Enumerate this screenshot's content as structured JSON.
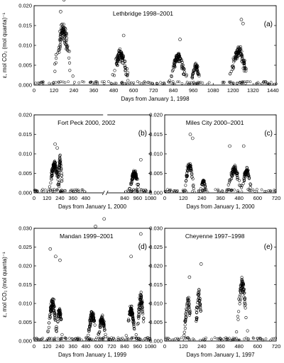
{
  "chart_data": [
    {
      "id": "a",
      "type": "scatter",
      "panel_label": "(a)",
      "title": "Lethbridge 1998–2001",
      "xlabel": "Days from January 1, 1998",
      "ylabel": "ε, mol CO₂ (mol quanta)⁻¹",
      "xlim": [
        0,
        1460
      ],
      "ylim": [
        0,
        0.02
      ],
      "xticks": [
        0,
        120,
        240,
        360,
        480,
        600,
        720,
        840,
        960,
        1080,
        1200,
        1320,
        1440
      ],
      "yticks": [
        0.0,
        0.005,
        0.01,
        0.015,
        0.02
      ],
      "ytick_labels": [
        "0.000",
        "0.005",
        "0.010",
        "0.015",
        "0.020"
      ],
      "markers": "open-circles",
      "series": [
        {
          "peaks": [
            [
              175,
              0.0135,
              60
            ],
            [
              520,
              0.0078,
              55
            ],
            [
              870,
              0.0072,
              55
            ],
            [
              975,
              0.0048,
              30
            ],
            [
              1235,
              0.0085,
              60
            ]
          ],
          "outliers": [
            [
              180,
              0.0215
            ],
            [
              160,
              0.0185
            ],
            [
              1250,
              0.0165
            ],
            [
              1260,
              0.0155
            ],
            [
              540,
              0.0125
            ],
            [
              880,
              0.0115
            ]
          ]
        }
      ]
    },
    {
      "id": "b",
      "type": "scatter",
      "panel_label": "(b)",
      "title": "Fort Peck 2000, 2002",
      "xlabel": "Days from January 1, 2000",
      "ylabel": "",
      "xlim": [
        0,
        1080
      ],
      "ylim": [
        0,
        0.02
      ],
      "axis_break": [
        480,
        840
      ],
      "xticks": [
        0,
        120,
        240,
        360,
        480,
        840,
        960,
        1080
      ],
      "yticks": [
        0.0,
        0.005,
        0.01,
        0.015,
        0.02
      ],
      "ytick_labels": [
        "0.000",
        "0.005",
        "0.010",
        "0.015",
        "0.020"
      ],
      "markers": "open-circles",
      "series": [
        {
          "peaks": [
            [
              190,
              0.007,
              55
            ],
            [
              240,
              0.008,
              25
            ],
            [
              930,
              0.005,
              50
            ]
          ],
          "outliers": [
            [
              195,
              0.0125
            ],
            [
              215,
              0.0115
            ],
            [
              990,
              0.0085
            ]
          ]
        }
      ]
    },
    {
      "id": "c",
      "type": "scatter",
      "panel_label": "(c)",
      "title": "Miles City 2000–2001",
      "xlabel": "Days from January 1, 2000",
      "ylabel": "",
      "xlim": [
        0,
        720
      ],
      "ylim": [
        0,
        0.02
      ],
      "xticks": [
        0,
        120,
        240,
        360,
        480,
        600,
        720
      ],
      "yticks": [
        0.0,
        0.005,
        0.01,
        0.015,
        0.02
      ],
      "ytick_labels": [
        "0.000",
        "0.005",
        "0.010",
        "0.015",
        "0.020"
      ],
      "markers": "open-circles",
      "series": [
        {
          "peaks": [
            [
              160,
              0.007,
              35
            ],
            [
              250,
              0.003,
              20
            ],
            [
              450,
              0.006,
              45
            ],
            [
              530,
              0.0055,
              35
            ]
          ],
          "outliers": [
            [
              165,
              0.015
            ],
            [
              180,
              0.014
            ],
            [
              420,
              0.012
            ],
            [
              510,
              0.012
            ]
          ]
        }
      ]
    },
    {
      "id": "d",
      "type": "scatter",
      "panel_label": "(d)",
      "title": "Mandan 1999–2001",
      "xlabel": "Days from January 1, 1999",
      "ylabel": "ε, mol CO₂ (mol quanta)⁻¹",
      "xlim": [
        0,
        1080
      ],
      "ylim": [
        0,
        0.03
      ],
      "xticks": [
        0,
        120,
        240,
        360,
        480,
        600,
        720,
        840,
        960,
        1080
      ],
      "yticks": [
        0.0,
        0.005,
        0.01,
        0.015,
        0.02,
        0.025,
        0.03
      ],
      "ytick_labels": [
        "0.000",
        "0.005",
        "0.010",
        "0.015",
        "0.020",
        "0.025",
        "0.030"
      ],
      "markers": "open-circles",
      "series": [
        {
          "peaks": [
            [
              170,
              0.01,
              50
            ],
            [
              235,
              0.008,
              30
            ],
            [
              540,
              0.007,
              45
            ],
            [
              630,
              0.006,
              40
            ],
            [
              900,
              0.008,
              45
            ],
            [
              990,
              0.011,
              40
            ]
          ],
          "outliers": [
            [
              570,
              0.0305
            ],
            [
              650,
              0.0325
            ],
            [
              990,
              0.0285
            ],
            [
              150,
              0.0245
            ],
            [
              200,
              0.0225
            ],
            [
              240,
              0.0215
            ],
            [
              900,
              0.0225
            ]
          ]
        }
      ]
    },
    {
      "id": "e",
      "type": "scatter",
      "panel_label": "(e)",
      "title": "Cheyenne 1997–1998",
      "xlabel": "Days from January 1, 1997",
      "ylabel": "",
      "xlim": [
        0,
        720
      ],
      "ylim": [
        0,
        0.03
      ],
      "xticks": [
        0,
        120,
        240,
        360,
        480,
        600,
        720
      ],
      "yticks": [
        0.0,
        0.005,
        0.01,
        0.015,
        0.02,
        0.025,
        0.03
      ],
      "ytick_labels": [
        "0.000",
        "0.005",
        "0.010",
        "0.015",
        "0.020",
        "0.025",
        "0.030"
      ],
      "markers": "open-circles",
      "series": [
        {
          "peaks": [
            [
              150,
              0.011,
              25
            ],
            [
              220,
              0.012,
              25
            ],
            [
              500,
              0.015,
              40
            ]
          ],
          "outliers": [
            [
              235,
              0.0205
            ],
            [
              160,
              0.017
            ]
          ]
        }
      ]
    }
  ]
}
